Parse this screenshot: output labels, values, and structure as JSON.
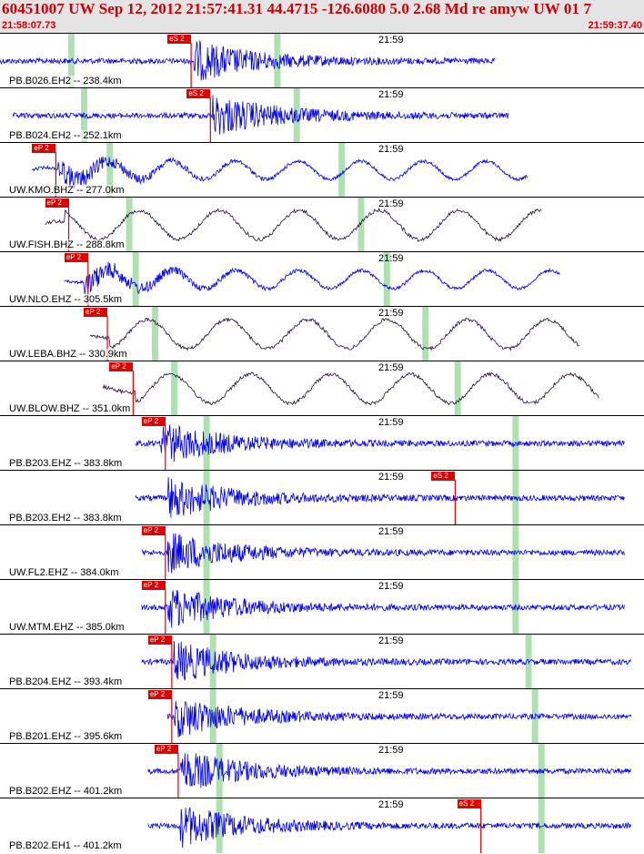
{
  "header": {
    "title": "60451007 UW Sep 12, 2012 21:57:41.31   44.4715 -126.6080  5.0 2.68 Md re amyw UW 01    7",
    "start_time": "21:58:07.73",
    "end_time": "21:59:37.40"
  },
  "colors": {
    "trace_blue": "#0000ee",
    "trace_dark": "#2a0a3a",
    "pick_red": "#e00000",
    "phase_green": "#aee0b0",
    "header_bg": "#e4e4e4",
    "text_red": "#cc0000"
  },
  "minute_label": "21:59",
  "panels": [
    {
      "station": "PB.B026.EH2 -- 238.4km",
      "pick": "eS 2",
      "pick_frac": 0.26,
      "pick_type": "S",
      "trace_start": 0.0,
      "trace_end": 0.77,
      "onset": 0.3,
      "green": [
        0.11,
        0.43
      ],
      "style": "hf",
      "color": "blue"
    },
    {
      "station": "PB.B024.EH2 -- 252.1km",
      "pick": "eS 2",
      "pick_frac": 0.29,
      "pick_type": "S",
      "trace_start": 0.02,
      "trace_end": 0.79,
      "onset": 0.33,
      "green": [
        0.13,
        0.46
      ],
      "style": "hf",
      "color": "blue"
    },
    {
      "station": "UW.KMO.BHZ -- 277.0km",
      "pick": "eP 2",
      "pick_frac": 0.05,
      "pick_type": "P",
      "trace_start": 0.05,
      "trace_end": 0.82,
      "onset": 0.09,
      "green": [
        0.17,
        0.53
      ],
      "style": "mix",
      "color": "blue"
    },
    {
      "station": "UW.FISH.BHZ -- 288.8km",
      "pick": "eP 2",
      "pick_frac": 0.07,
      "pick_type": "P",
      "trace_start": 0.07,
      "trace_end": 0.84,
      "onset": 0.1,
      "green": [
        0.2,
        0.56
      ],
      "style": "lf",
      "color": "dark"
    },
    {
      "station": "UW.NLO.EHZ -- 305.5km",
      "pick": "eP 2",
      "pick_frac": 0.1,
      "pick_type": "P",
      "trace_start": 0.1,
      "trace_end": 0.87,
      "onset": 0.13,
      "green": [
        0.21,
        0.6
      ],
      "style": "mix",
      "color": "blue"
    },
    {
      "station": "UW.LEBA.BHZ -- 330.9km",
      "pick": "eP 2",
      "pick_frac": 0.13,
      "pick_type": "P",
      "trace_start": 0.14,
      "trace_end": 0.9,
      "onset": 0.17,
      "green": [
        0.24,
        0.66
      ],
      "style": "lf",
      "color": "dark"
    },
    {
      "station": "UW.BLOW.BHZ -- 351.0km",
      "pick": "eP 2",
      "pick_frac": 0.17,
      "pick_type": "P",
      "trace_start": 0.16,
      "trace_end": 0.93,
      "onset": 0.21,
      "green": [
        0.27,
        0.71
      ],
      "style": "lf",
      "color": "dark"
    },
    {
      "station": "PB.B203.EHZ -- 383.8km",
      "pick": "eP 2",
      "pick_frac": 0.22,
      "pick_type": "P",
      "trace_start": 0.21,
      "trace_end": 0.97,
      "onset": 0.25,
      "green": [
        0.32,
        0.8
      ],
      "style": "hf",
      "color": "blue"
    },
    {
      "station": "PB.B203.EH2 -- 383.8km",
      "pick": "eS 2",
      "pick_frac": 0.67,
      "pick_type": "S",
      "trace_start": 0.21,
      "trace_end": 0.97,
      "onset": 0.26,
      "green": [
        0.32,
        0.8
      ],
      "style": "hf",
      "color": "blue"
    },
    {
      "station": "UW.FL2.EHZ -- 384.0km",
      "pick": "eP 2",
      "pick_frac": 0.22,
      "pick_type": "P",
      "trace_start": 0.22,
      "trace_end": 0.97,
      "onset": 0.26,
      "green": [
        0.32,
        0.8
      ],
      "style": "hf",
      "color": "blue"
    },
    {
      "station": "UW.MTM.EHZ -- 385.0km",
      "pick": "eP 2",
      "pick_frac": 0.22,
      "pick_type": "P",
      "trace_start": 0.22,
      "trace_end": 0.97,
      "onset": 0.26,
      "green": [
        0.32,
        0.8
      ],
      "style": "hf",
      "color": "blue"
    },
    {
      "station": "PB.B204.EHZ -- 393.4km",
      "pick": "eP 2",
      "pick_frac": 0.23,
      "pick_type": "P",
      "trace_start": 0.22,
      "trace_end": 0.98,
      "onset": 0.27,
      "green": [
        0.33,
        0.82
      ],
      "style": "hf",
      "color": "blue"
    },
    {
      "station": "PB.B201.EHZ -- 395.6km",
      "pick": "eP 2",
      "pick_frac": 0.23,
      "pick_type": "P",
      "trace_start": 0.26,
      "trace_end": 0.98,
      "onset": 0.27,
      "green": [
        0.33,
        0.83
      ],
      "style": "hf",
      "color": "blue"
    },
    {
      "station": "PB.B202.EHZ -- 401.2km",
      "pick": "eP 2",
      "pick_frac": 0.24,
      "pick_type": "P",
      "trace_start": 0.23,
      "trace_end": 0.98,
      "onset": 0.28,
      "green": [
        0.34,
        0.84
      ],
      "style": "hf",
      "color": "blue"
    },
    {
      "station": "PB.B202.EH1 -- 401.2km",
      "pick": "eS 2",
      "pick_frac": 0.71,
      "pick_type": "S",
      "trace_start": 0.23,
      "trace_end": 0.98,
      "onset": 0.28,
      "green": [
        0.34,
        0.84
      ],
      "style": "hf",
      "color": "blue"
    }
  ]
}
